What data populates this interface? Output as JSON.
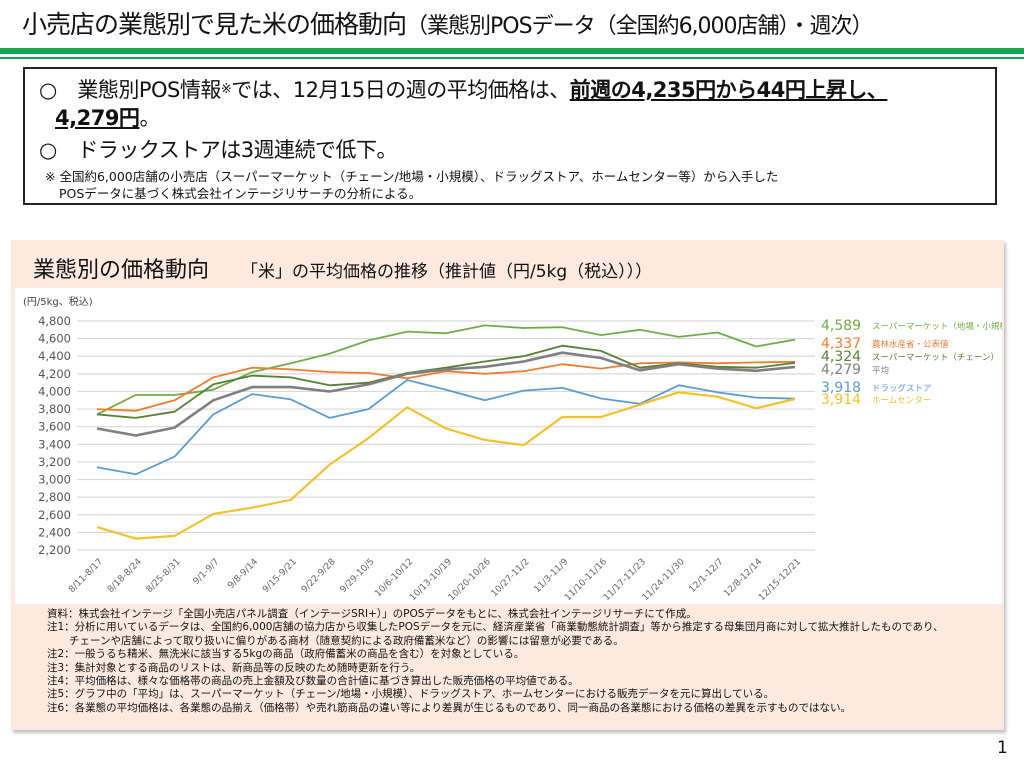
{
  "header": {
    "title": "小売店の業態別で見た米の価格動向",
    "title_sub": "（業態別POSデータ（全国約6,000店舗）・週次）"
  },
  "summary": {
    "line1_prefix": "○　業態別POS情報",
    "line1_mark": "※",
    "line1_mid": "では、12月15日の週の平均価格は、",
    "line1_highlight": "前週の4,235円から44円上昇し、",
    "line2_highlight": "4,279円",
    "line2_suffix": "。",
    "line3": "○　ドラックストアは3週連続で低下。",
    "note1": "※  全国約6,000店舗の小売店（スーパーマーケット（チェーン/地場・小規模）、ドラッグストア、ホームセンター等）から入手した",
    "note2": "POSデータに基づく株式会社インテージリサーチの分析による。"
  },
  "panel": {
    "title": "業態別の価格動向",
    "subtitle": "「米」の平均価格の推移（推計値（円/5kg（税込）））"
  },
  "notes": [
    "資料：株式会社インテージ「全国小売店パネル調査（インテージSRI+）」のPOSデータをもとに、株式会社インテージリサーチにて作成。",
    "注1：分析に用いているデータは、全国約6,000店舗の協力店から収集したPOSデータを元に、経済産業省「商業動態統計調査」等から推定する母集団月商に対して拡大推計したものであり、",
    "チェーンや店舗によって取り扱いに偏りがある商材（随意契約による政府備蓄米など）の影響には留意が必要である。",
    "注2：一般うるち精米、無洗米に該当する5kgの商品（政府備蓄米の商品を含む）を対象としている。",
    "注3：集計対象とする商品のリストは、新商品等の反映のため随時更新を行う。",
    "注4：平均価格は、様々な価格帯の商品の売上金額及び数量の合計値に基づき算出した販売価格の平均値である。",
    "注5：グラフ中の「平均」は、スーパーマーケット（チェーン/地場・小規模）、ドラッグストア、ホームセンターにおける販売データを元に算出している。",
    "注6：各業態の平均価格は、各業態の品揃え（価格帯）や売れ筋商品の違い等により差異が生じるものであり、同一商品の各業態における価格の差異を示すものではない。"
  ],
  "page_number": "1",
  "chart_data": {
    "type": "line",
    "title": "「米」の平均価格の推移（推計値（円/5kg（税込）））",
    "ylabel": "(円/5kg、税込)",
    "xlabel": "",
    "ylim": [
      2200,
      4800
    ],
    "yticks": [
      2200,
      2400,
      2600,
      2800,
      3000,
      3200,
      3400,
      3600,
      3800,
      4000,
      4200,
      4400,
      4600,
      4800
    ],
    "ytick_labels": [
      "2,200",
      "2,400",
      "2,600",
      "2,800",
      "3,000",
      "3,200",
      "3,400",
      "3,600",
      "3,800",
      "4,000",
      "4,200",
      "4,400",
      "4,600",
      "4,800"
    ],
    "grid": true,
    "legend": "right (end-of-line labels)",
    "categories": [
      "8/11-8/17",
      "8/18-8/24",
      "8/25-8/31",
      "9/1-9/7",
      "9/8-9/14",
      "9/15-9/21",
      "9/22-9/28",
      "9/29-10/5",
      "10/6-10/12",
      "10/13-10/19",
      "10/20-10/26",
      "10/27-11/2",
      "11/3-11/9",
      "11/10-11/16",
      "11/17-11/23",
      "11/24-11/30",
      "12/1-12/7",
      "12/8-12/14",
      "12/15-12/21"
    ],
    "series": [
      {
        "name": "スーパーマーケット（地場・小規模）",
        "color": "#70ad47",
        "end_label": "4,589",
        "values": [
          3740,
          3960,
          3960,
          4020,
          4220,
          4320,
          4430,
          4580,
          4680,
          4660,
          4750,
          4720,
          4730,
          4640,
          4700,
          4620,
          4670,
          4510,
          4589
        ]
      },
      {
        "name": "農林水産省・公表値",
        "color": "#ed7d31",
        "end_label": "4,337",
        "values": [
          3800,
          3780,
          3900,
          4160,
          4270,
          4250,
          4220,
          4210,
          4150,
          4230,
          4200,
          4230,
          4310,
          4260,
          4320,
          4330,
          4320,
          4330,
          4337
        ]
      },
      {
        "name": "スーパーマーケット（チェーン）",
        "color": "#548235",
        "end_label": "4,324",
        "values": [
          3740,
          3700,
          3770,
          4080,
          4180,
          4160,
          4070,
          4100,
          4210,
          4270,
          4340,
          4400,
          4520,
          4460,
          4270,
          4320,
          4280,
          4270,
          4324
        ]
      },
      {
        "name": "平均",
        "color": "#7f7f7f",
        "end_label": "4,279",
        "values": [
          3580,
          3500,
          3590,
          3900,
          4050,
          4050,
          4000,
          4080,
          4200,
          4250,
          4280,
          4340,
          4440,
          4380,
          4240,
          4310,
          4260,
          4235,
          4279
        ]
      },
      {
        "name": "ドラッグストア",
        "color": "#5b9bd5",
        "end_label": "3,918",
        "values": [
          3140,
          3060,
          3260,
          3740,
          3970,
          3910,
          3700,
          3800,
          4130,
          4020,
          3900,
          4010,
          4040,
          3920,
          3860,
          4070,
          3990,
          3930,
          3918
        ]
      },
      {
        "name": "ホームセンター",
        "color": "#f2c12e",
        "end_label": "3,914",
        "values": [
          2460,
          2330,
          2360,
          2610,
          2680,
          2770,
          3170,
          3470,
          3820,
          3580,
          3450,
          3390,
          3710,
          3710,
          3850,
          3990,
          3940,
          3810,
          3914
        ]
      }
    ]
  }
}
